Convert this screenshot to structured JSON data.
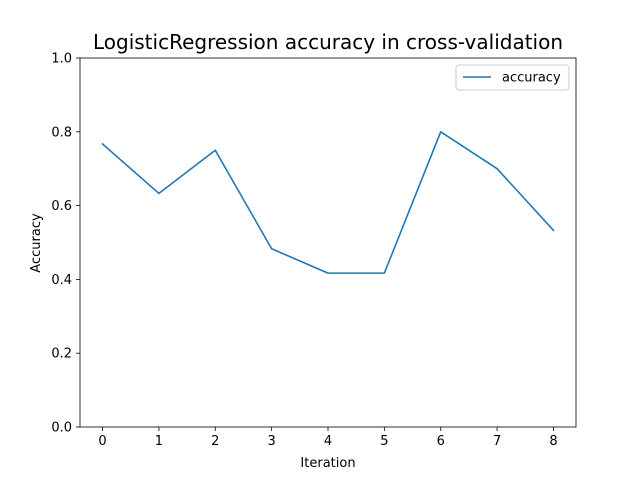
{
  "chart_data": {
    "type": "line",
    "title": "LogisticRegression accuracy in cross-validation",
    "xlabel": "Iteration",
    "ylabel": "Accuracy",
    "x": [
      0,
      1,
      2,
      3,
      4,
      5,
      6,
      7,
      8
    ],
    "xticks": [
      "0",
      "1",
      "2",
      "3",
      "4",
      "5",
      "6",
      "7",
      "8"
    ],
    "yticks": [
      "0.0",
      "0.2",
      "0.4",
      "0.6",
      "0.8",
      "1.0"
    ],
    "ylim": [
      0,
      1
    ],
    "xlim": [
      -0.4,
      8.4
    ],
    "grid": false,
    "legend_position": "top-right",
    "series": [
      {
        "name": "accuracy",
        "color": "#1f77b4",
        "values": [
          0.767,
          0.633,
          0.75,
          0.483,
          0.417,
          0.417,
          0.8,
          0.7,
          0.533
        ]
      }
    ]
  }
}
